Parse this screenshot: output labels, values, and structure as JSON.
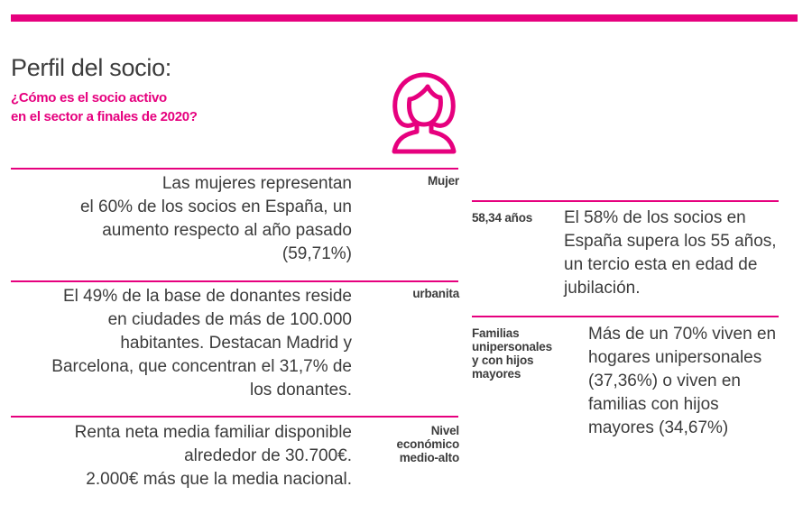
{
  "header": {
    "title": "Perfil del socio:",
    "subtitle_lines": [
      "¿Cómo es el socio activo",
      "en el sector a finales de 2020?"
    ]
  },
  "colors": {
    "accent": "#e6007e",
    "text": "#3c3c3c"
  },
  "icon": "woman-avatar-icon",
  "left_sections": [
    {
      "label_lines": [
        "Mujer"
      ],
      "text_lines": [
        "Las mujeres representan",
        "el 60%  de los socios en España, un",
        "aumento respecto al año pasado",
        "(59,71%)"
      ]
    },
    {
      "label_lines": [
        "urbanita"
      ],
      "text_lines": [
        "El 49% de la base de donantes reside",
        "en ciudades de más de 100.000",
        "habitantes. Destacan Madrid y",
        "Barcelona, que concentran el 31,7% de",
        "los donantes."
      ]
    },
    {
      "label_lines": [
        "Nivel",
        "económico",
        "medio-alto"
      ],
      "text_lines": [
        "Renta neta media familiar  disponible",
        "alrededor de  30.700€.",
        "2.000€ más que la media nacional."
      ]
    }
  ],
  "right_sections": [
    {
      "label_lines": [
        "58,34 años"
      ],
      "text_lines": [
        "El 58% de los socios en",
        "España supera los 55 años,",
        "un tercio esta en edad de",
        "jubilación."
      ]
    },
    {
      "label_lines": [
        "Familias",
        "unipersonales",
        "y con hijos",
        "mayores"
      ],
      "text_lines": [
        "Más de un 70% viven en",
        "hogares unipersonales",
        "(37,36%) o viven en",
        "familias con hijos",
        "mayores (34,67%)"
      ]
    }
  ]
}
